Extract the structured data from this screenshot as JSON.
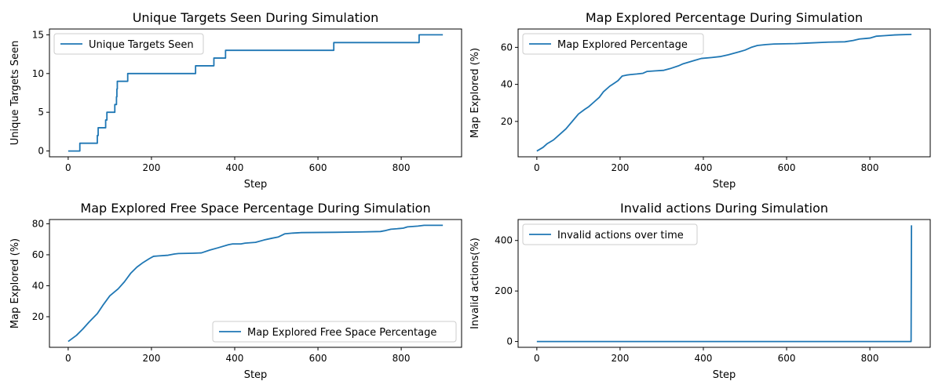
{
  "chart_data": [
    {
      "type": "line",
      "title": "Unique Targets Seen During Simulation",
      "xlabel": "Step",
      "ylabel": "Unique Targets Seen",
      "xlim": [
        -45,
        945
      ],
      "ylim": [
        -0.75,
        15.75
      ],
      "xticks": [
        0,
        200,
        400,
        600,
        800
      ],
      "yticks": [
        0,
        5,
        10,
        15
      ],
      "grid": false,
      "legend_position": "upper left",
      "step": true,
      "series": [
        {
          "name": "Unique Targets Seen",
          "color": "#1f77b4",
          "points": [
            [
              0,
              0
            ],
            [
              28,
              0
            ],
            [
              28,
              1
            ],
            [
              70,
              1
            ],
            [
              70,
              2
            ],
            [
              72,
              2
            ],
            [
              72,
              3
            ],
            [
              90,
              3
            ],
            [
              90,
              4
            ],
            [
              93,
              4
            ],
            [
              93,
              5
            ],
            [
              112,
              5
            ],
            [
              112,
              6
            ],
            [
              116,
              6
            ],
            [
              116,
              7
            ],
            [
              117,
              7
            ],
            [
              117,
              8
            ],
            [
              118,
              8
            ],
            [
              118,
              9
            ],
            [
              143,
              9
            ],
            [
              143,
              10
            ],
            [
              306,
              10
            ],
            [
              306,
              11
            ],
            [
              350,
              11
            ],
            [
              350,
              12
            ],
            [
              378,
              12
            ],
            [
              378,
              13
            ],
            [
              638,
              13
            ],
            [
              638,
              14
            ],
            [
              843,
              14
            ],
            [
              843,
              15
            ],
            [
              900,
              15
            ]
          ]
        }
      ]
    },
    {
      "type": "line",
      "title": "Map Explored Percentage During Simulation",
      "xlabel": "Step",
      "ylabel": "Map Explored (%)",
      "xlim": [
        -45,
        945
      ],
      "ylim": [
        0.9,
        69.9
      ],
      "xticks": [
        0,
        200,
        400,
        600,
        800
      ],
      "yticks": [
        20,
        40,
        60
      ],
      "grid": false,
      "legend_position": "upper left",
      "series": [
        {
          "name": "Map Explored Percentage",
          "color": "#1f77b4",
          "points": [
            [
              0,
              4
            ],
            [
              15,
              6
            ],
            [
              25,
              8
            ],
            [
              40,
              10
            ],
            [
              55,
              13
            ],
            [
              70,
              16
            ],
            [
              85,
              20
            ],
            [
              100,
              24
            ],
            [
              115,
              26.5
            ],
            [
              125,
              28
            ],
            [
              140,
              31
            ],
            [
              150,
              33
            ],
            [
              160,
              36
            ],
            [
              175,
              39
            ],
            [
              185,
              40.5
            ],
            [
              195,
              42
            ],
            [
              205,
              44.5
            ],
            [
              215,
              45
            ],
            [
              225,
              45.3
            ],
            [
              240,
              45.6
            ],
            [
              255,
              46
            ],
            [
              265,
              47
            ],
            [
              285,
              47.3
            ],
            [
              305,
              47.6
            ],
            [
              320,
              48.5
            ],
            [
              340,
              50
            ],
            [
              350,
              51
            ],
            [
              365,
              52
            ],
            [
              380,
              53
            ],
            [
              395,
              54
            ],
            [
              420,
              54.5
            ],
            [
              440,
              55
            ],
            [
              460,
              56
            ],
            [
              485,
              57.5
            ],
            [
              500,
              58.5
            ],
            [
              515,
              60
            ],
            [
              530,
              61
            ],
            [
              550,
              61.5
            ],
            [
              570,
              61.8
            ],
            [
              620,
              62
            ],
            [
              650,
              62.3
            ],
            [
              700,
              62.8
            ],
            [
              740,
              63
            ],
            [
              760,
              63.7
            ],
            [
              775,
              64.5
            ],
            [
              790,
              64.8
            ],
            [
              800,
              65
            ],
            [
              815,
              66
            ],
            [
              835,
              66.3
            ],
            [
              860,
              66.7
            ],
            [
              900,
              67
            ]
          ]
        }
      ]
    },
    {
      "type": "line",
      "title": "Map Explored Free Space Percentage During Simulation",
      "xlabel": "Step",
      "ylabel": "Map Explored (%)",
      "xlim": [
        -45,
        945
      ],
      "ylim": [
        0.25,
        82.75
      ],
      "xticks": [
        0,
        200,
        400,
        600,
        800
      ],
      "yticks": [
        20,
        40,
        60,
        80
      ],
      "grid": false,
      "legend_position": "lower right",
      "series": [
        {
          "name": "Map Explored Free Space Percentage",
          "color": "#1f77b4",
          "points": [
            [
              0,
              4
            ],
            [
              20,
              8
            ],
            [
              35,
              12
            ],
            [
              50,
              16.5
            ],
            [
              70,
              22
            ],
            [
              85,
              28
            ],
            [
              100,
              33.5
            ],
            [
              120,
              38
            ],
            [
              135,
              42.5
            ],
            [
              150,
              48
            ],
            [
              165,
              52
            ],
            [
              180,
              55
            ],
            [
              195,
              57.5
            ],
            [
              205,
              59
            ],
            [
              215,
              59.2
            ],
            [
              240,
              59.7
            ],
            [
              255,
              60.5
            ],
            [
              265,
              60.8
            ],
            [
              300,
              61
            ],
            [
              320,
              61.2
            ],
            [
              340,
              63
            ],
            [
              360,
              64.5
            ],
            [
              385,
              66.5
            ],
            [
              395,
              67
            ],
            [
              415,
              67
            ],
            [
              425,
              67.5
            ],
            [
              450,
              68
            ],
            [
              470,
              69.5
            ],
            [
              490,
              70.7
            ],
            [
              505,
              71.5
            ],
            [
              520,
              73.5
            ],
            [
              540,
              74
            ],
            [
              560,
              74.3
            ],
            [
              640,
              74.5
            ],
            [
              700,
              74.7
            ],
            [
              750,
              75
            ],
            [
              760,
              75.5
            ],
            [
              775,
              76.5
            ],
            [
              790,
              76.8
            ],
            [
              805,
              77.2
            ],
            [
              815,
              78
            ],
            [
              840,
              78.5
            ],
            [
              855,
              79
            ],
            [
              900,
              79
            ]
          ]
        }
      ]
    },
    {
      "type": "line",
      "title": "Invalid actions During Simulation",
      "xlabel": "Step",
      "ylabel": "Invalid actions(%)",
      "xlim": [
        -45,
        945
      ],
      "ylim": [
        -23,
        483
      ],
      "xticks": [
        0,
        200,
        400,
        600,
        800
      ],
      "yticks": [
        0,
        200,
        400
      ],
      "grid": false,
      "legend_position": "upper left",
      "series": [
        {
          "name": "Invalid actions over time",
          "color": "#1f77b4",
          "points": [
            [
              0,
              0
            ],
            [
              899,
              0
            ],
            [
              900,
              460
            ]
          ]
        }
      ]
    }
  ]
}
